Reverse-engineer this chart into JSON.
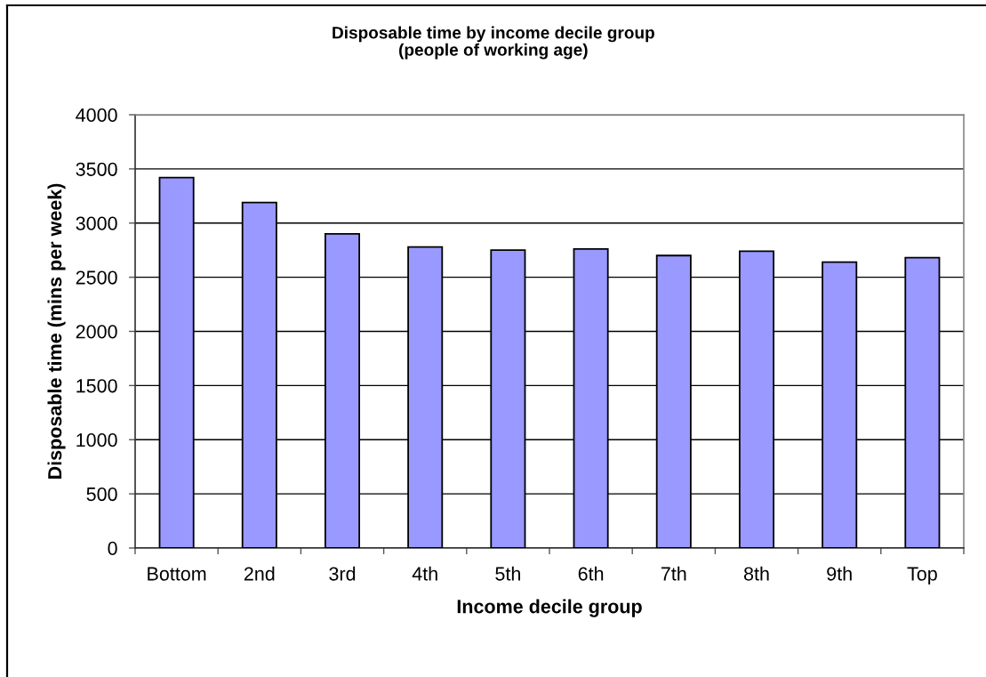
{
  "chart_data": {
    "type": "bar",
    "title": "Disposable time by income decile group\n(people of working age)",
    "xlabel": "Income decile group",
    "ylabel": "Disposable time (mins per week)",
    "categories": [
      "Bottom",
      "2nd",
      "3rd",
      "4th",
      "5th",
      "6th",
      "7th",
      "8th",
      "9th",
      "Top"
    ],
    "values": [
      3420,
      3190,
      2900,
      2780,
      2750,
      2760,
      2700,
      2740,
      2640,
      2680
    ],
    "color": "#9999ff",
    "ylim": [
      0,
      4000
    ],
    "yticks": [
      0,
      500,
      1000,
      1500,
      2000,
      2500,
      3000,
      3500,
      4000
    ],
    "grid": "y"
  }
}
